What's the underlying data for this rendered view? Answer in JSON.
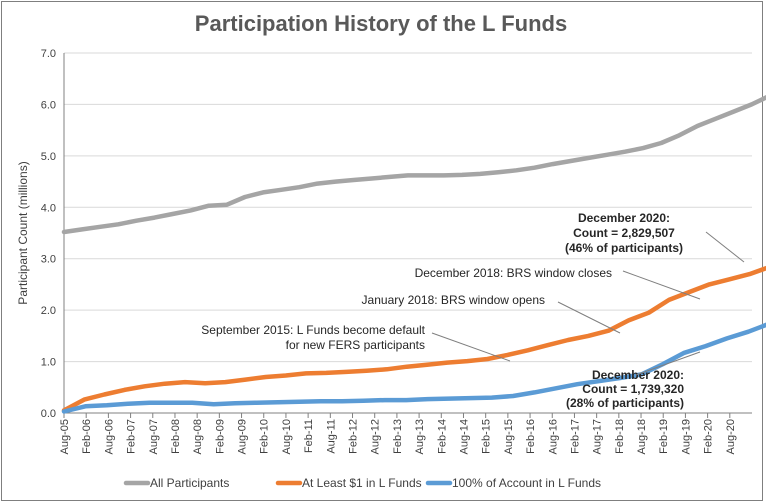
{
  "chart_data": {
    "type": "line",
    "title": "Participation History of the L Funds",
    "xlabel": "",
    "ylabel": "Participant Count (millions)",
    "ylim": [
      0,
      7
    ],
    "yticks": [
      "0.0",
      "1.0",
      "2.0",
      "3.0",
      "4.0",
      "5.0",
      "6.0",
      "7.0"
    ],
    "x_ticks": [
      "Aug-05",
      "Feb-06",
      "Aug-06",
      "Feb-07",
      "Aug-07",
      "Feb-08",
      "Aug-08",
      "Feb-09",
      "Aug-09",
      "Feb-10",
      "Aug-10",
      "Feb-11",
      "Aug-11",
      "Feb-12",
      "Aug-12",
      "Feb-13",
      "Aug-13",
      "Feb-14",
      "Aug-14",
      "Feb-15",
      "Aug-15",
      "Feb-16",
      "Aug-16",
      "Feb-17",
      "Aug-17",
      "Feb-18",
      "Aug-18",
      "Feb-19",
      "Aug-19",
      "Feb-20",
      "Aug-20"
    ],
    "series": [
      {
        "name": "All Participants",
        "color": "#a5a5a5",
        "values": [
          3.52,
          3.57,
          3.62,
          3.67,
          3.74,
          3.8,
          3.87,
          3.94,
          4.03,
          4.05,
          4.2,
          4.29,
          4.34,
          4.39,
          4.46,
          4.5,
          4.53,
          4.56,
          4.59,
          4.62,
          4.62,
          4.62,
          4.63,
          4.65,
          4.68,
          4.72,
          4.77,
          4.84,
          4.9,
          4.96,
          5.02,
          5.08,
          5.15,
          5.25,
          5.4,
          5.58,
          5.72,
          5.86,
          6.0,
          6.17
        ]
      },
      {
        "name": "At Least $1 in L Funds",
        "color": "#ed7d31",
        "values": [
          0.05,
          0.26,
          0.36,
          0.45,
          0.52,
          0.57,
          0.6,
          0.58,
          0.6,
          0.65,
          0.7,
          0.73,
          0.77,
          0.78,
          0.8,
          0.82,
          0.85,
          0.9,
          0.94,
          0.98,
          1.01,
          1.05,
          1.13,
          1.22,
          1.32,
          1.42,
          1.5,
          1.6,
          1.8,
          1.95,
          2.2,
          2.35,
          2.5,
          2.6,
          2.7,
          2.84
        ]
      },
      {
        "name": "100% of Account in L Funds",
        "color": "#5b9bd5",
        "values": [
          0.03,
          0.13,
          0.15,
          0.18,
          0.2,
          0.2,
          0.2,
          0.17,
          0.19,
          0.2,
          0.21,
          0.22,
          0.23,
          0.23,
          0.24,
          0.25,
          0.25,
          0.27,
          0.28,
          0.29,
          0.3,
          0.33,
          0.4,
          0.48,
          0.56,
          0.62,
          0.68,
          0.75,
          0.95,
          1.17,
          1.3,
          1.45,
          1.58,
          1.74
        ]
      }
    ],
    "legend": {
      "position": "bottom"
    },
    "annotations": [
      {
        "id": "dec2020_top",
        "lines": [
          "December 2020:",
          "Count = 2,829,507",
          "(46% of participants)"
        ],
        "bold": true
      },
      {
        "id": "dec2018",
        "lines": [
          "December 2018: BRS window closes"
        ],
        "bold": false
      },
      {
        "id": "jan2018",
        "lines": [
          "January 2018: BRS window opens"
        ],
        "bold": false
      },
      {
        "id": "sep2015",
        "lines": [
          "September 2015: L Funds become default",
          "for new FERS participants"
        ],
        "bold": false
      },
      {
        "id": "dec2020_bottom",
        "lines": [
          "December 2020:",
          "Count = 1,739,320",
          "(28% of participants)"
        ],
        "bold": true
      }
    ]
  }
}
